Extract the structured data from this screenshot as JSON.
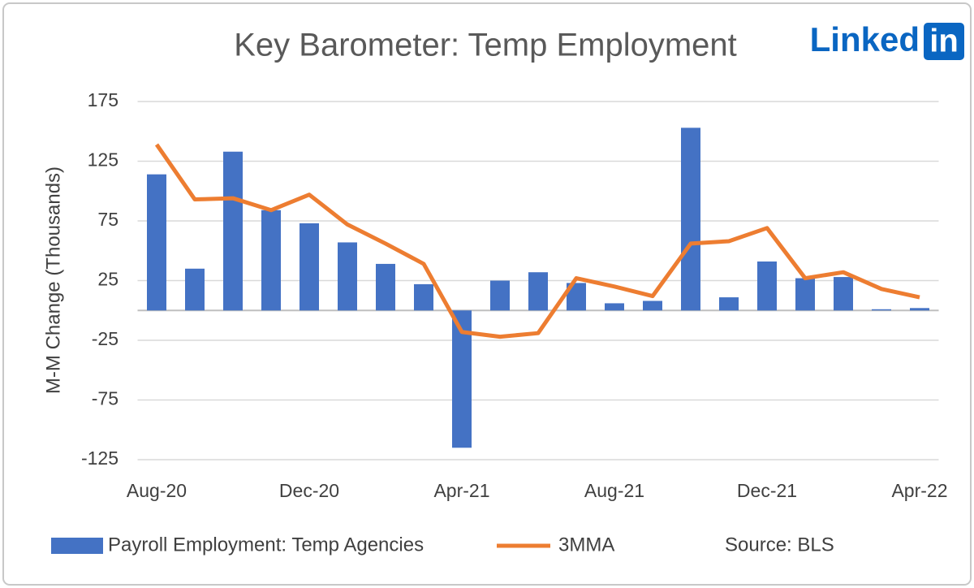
{
  "chart_data": {
    "type": "bar",
    "title": "Key Barometer: Temp Employment",
    "watermark": "Linked",
    "watermark_badge": "in",
    "y_label": "M-M Change (Thousands)",
    "annotation": "Source: BLS",
    "categories": [
      "Aug-20",
      null,
      null,
      null,
      "Dec-20",
      null,
      null,
      null,
      "Apr-21",
      null,
      null,
      null,
      "Aug-21",
      null,
      null,
      null,
      "Dec-21",
      null,
      null,
      null,
      "Apr-22"
    ],
    "series": [
      {
        "name": "Payroll Employment: Temp Agencies",
        "type": "bar",
        "color": "#4472c4",
        "values": [
          114,
          35,
          133,
          84,
          73,
          57,
          39,
          22,
          -115,
          25,
          32,
          23,
          6,
          8,
          153,
          11,
          41,
          27,
          28,
          1,
          2
        ]
      },
      {
        "name": "3MMA",
        "type": "line",
        "color": "#ed7d31",
        "values": [
          139,
          93,
          94,
          84,
          97,
          72,
          56,
          39,
          -18,
          -22,
          -19,
          27,
          20,
          12,
          56,
          58,
          69,
          27,
          32,
          18,
          11
        ]
      }
    ],
    "ylim": [
      -125,
      175
    ],
    "yticks": [
      175,
      125,
      75,
      25,
      -25,
      -75,
      -125
    ],
    "grid": true
  }
}
